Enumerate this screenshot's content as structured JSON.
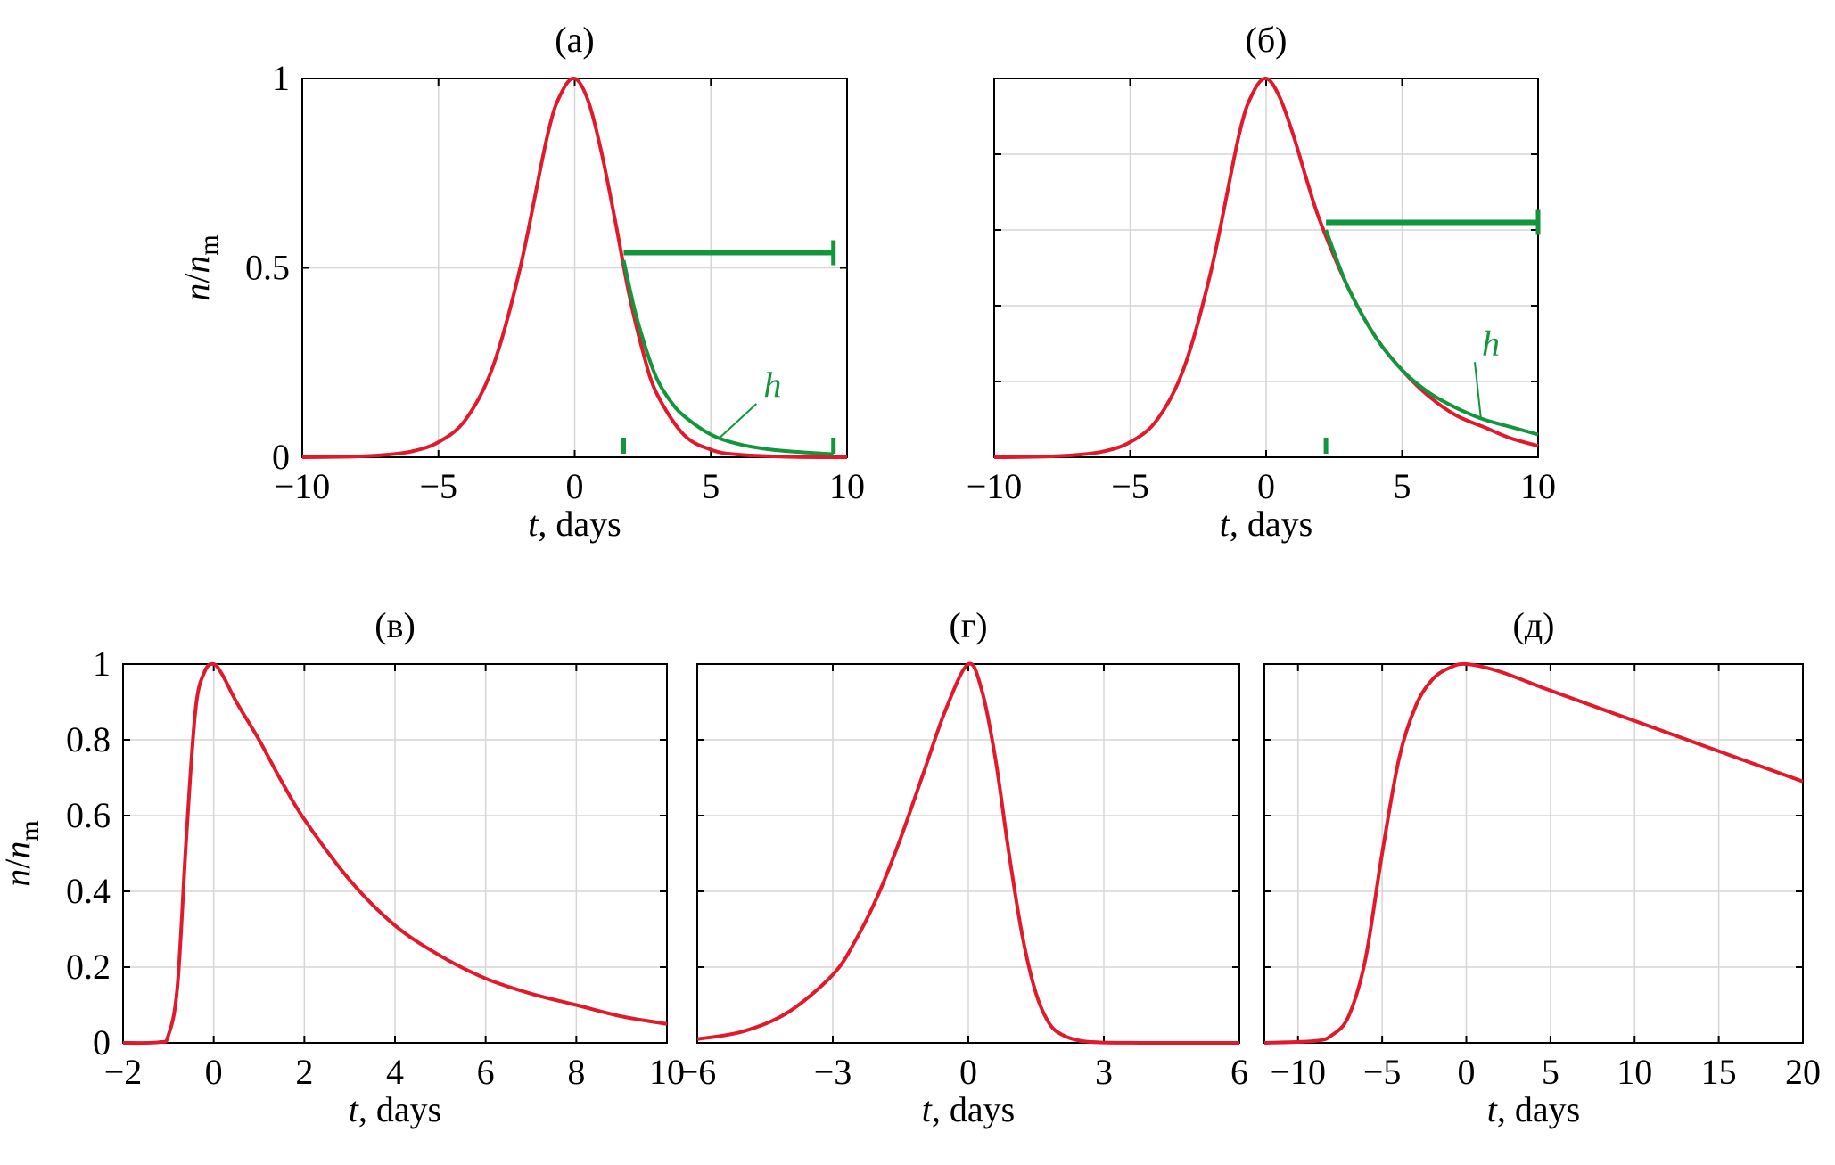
{
  "colors": {
    "main_curve": "#e2192b",
    "fit_curve": "#12963c",
    "grid": "#d6d6d6",
    "axes": "#000000"
  },
  "chart_data": [
    {
      "type": "line",
      "title": "(а)",
      "xlabel": "t, days",
      "ylabel": "n/n_m",
      "xlim": [
        -10,
        10
      ],
      "ylim": [
        0,
        1
      ],
      "grid": true,
      "x_ticks": [
        -10,
        -5,
        0,
        5,
        10
      ],
      "x_tick_labels": [
        "−10",
        "−5",
        "0",
        "5",
        "10"
      ],
      "y_ticks": [
        0,
        0.5,
        1
      ],
      "y_tick_labels": [
        "0",
        "0.5",
        "1"
      ],
      "series": [
        {
          "color": "#e2192b",
          "x": [
            -10,
            -8,
            -7,
            -6,
            -5,
            -4,
            -3,
            -2,
            -1,
            -0.5,
            0,
            0.5,
            1,
            1.5,
            2,
            2.5,
            3,
            4,
            5,
            6,
            8,
            10
          ],
          "y": [
            0.0,
            0.002,
            0.006,
            0.015,
            0.04,
            0.1,
            0.24,
            0.5,
            0.85,
            0.96,
            1.0,
            0.94,
            0.8,
            0.62,
            0.43,
            0.28,
            0.17,
            0.06,
            0.02,
            0.007,
            0.001,
            0.0
          ]
        },
        {
          "color": "#12963c",
          "x": [
            1.8,
            2.2,
            2.6,
            3.0,
            3.5,
            4.0,
            5.0,
            6.0,
            7.0,
            8.0,
            9.5
          ],
          "y": [
            0.52,
            0.39,
            0.29,
            0.21,
            0.15,
            0.11,
            0.06,
            0.035,
            0.022,
            0.015,
            0.008
          ]
        }
      ],
      "annotations": [
        {
          "text": "h",
          "x": 7.0,
          "y": 0.16,
          "target_x": 5.3,
          "target_y": 0.05
        }
      ],
      "interval": {
        "x_start": 1.8,
        "x_end": 9.5,
        "y": 0.54
      }
    },
    {
      "type": "line",
      "title": "(б)",
      "xlabel": "t, days",
      "ylabel": "",
      "xlim": [
        -10,
        10
      ],
      "ylim": [
        0,
        1
      ],
      "grid": true,
      "x_ticks": [
        -10,
        -5,
        0,
        5,
        10
      ],
      "x_tick_labels": [
        "−10",
        "−5",
        "0",
        "5",
        "10"
      ],
      "y_ticks": [
        0,
        0.2,
        0.4,
        0.6,
        0.8,
        1
      ],
      "y_tick_labels": [],
      "series": [
        {
          "color": "#e2192b",
          "x": [
            -10,
            -8,
            -7,
            -6,
            -5,
            -4,
            -3,
            -2,
            -1,
            -0.5,
            0,
            0.5,
            1,
            1.5,
            2,
            3,
            4,
            5,
            6,
            7,
            8,
            9,
            10
          ],
          "y": [
            0.0,
            0.002,
            0.006,
            0.015,
            0.04,
            0.1,
            0.24,
            0.5,
            0.85,
            0.96,
            1.0,
            0.95,
            0.85,
            0.73,
            0.62,
            0.45,
            0.32,
            0.23,
            0.16,
            0.11,
            0.08,
            0.05,
            0.03
          ]
        },
        {
          "color": "#12963c",
          "x": [
            2.2,
            3,
            4,
            5,
            6,
            7,
            8,
            9,
            10
          ],
          "y": [
            0.6,
            0.45,
            0.32,
            0.23,
            0.17,
            0.13,
            0.1,
            0.08,
            0.06
          ]
        }
      ],
      "annotations": [
        {
          "text": "h",
          "x": 8.0,
          "y": 0.27,
          "target_x": 7.9,
          "target_y": 0.1
        }
      ],
      "interval": {
        "x_start": 2.2,
        "x_end": 10.0,
        "y": 0.62
      }
    },
    {
      "type": "line",
      "title": "(в)",
      "xlabel": "t, days",
      "ylabel": "n/n_m",
      "xlim": [
        -2,
        10
      ],
      "ylim": [
        0,
        1
      ],
      "grid": true,
      "x_ticks": [
        -2,
        0,
        2,
        4,
        6,
        8,
        10
      ],
      "x_tick_labels": [
        "−2",
        "0",
        "2",
        "4",
        "6",
        "8",
        "10"
      ],
      "y_ticks": [
        0,
        0.2,
        0.4,
        0.6,
        0.8,
        1
      ],
      "y_tick_labels": [
        "0",
        "0.2",
        "0.4",
        "0.6",
        "0.8",
        "1"
      ],
      "series": [
        {
          "color": "#e2192b",
          "x": [
            -2,
            -1.2,
            -1.0,
            -0.8,
            -0.6,
            -0.4,
            -0.2,
            0,
            0.2,
            0.5,
            1,
            1.5,
            2,
            3,
            4,
            5,
            6,
            7,
            8,
            9,
            10
          ],
          "y": [
            0.0,
            0.002,
            0.02,
            0.15,
            0.55,
            0.88,
            0.98,
            1.0,
            0.97,
            0.9,
            0.8,
            0.69,
            0.59,
            0.43,
            0.31,
            0.23,
            0.17,
            0.13,
            0.1,
            0.07,
            0.05
          ]
        }
      ]
    },
    {
      "type": "line",
      "title": "(г)",
      "xlabel": "t, days",
      "ylabel": "",
      "xlim": [
        -6,
        6
      ],
      "ylim": [
        0,
        1
      ],
      "grid": true,
      "x_ticks": [
        -6,
        -3,
        0,
        3,
        6
      ],
      "x_tick_labels": [
        "−6",
        "−3",
        "0",
        "3",
        "6"
      ],
      "y_ticks": [
        0,
        0.2,
        0.4,
        0.6,
        0.8,
        1
      ],
      "y_tick_labels": [],
      "series": [
        {
          "color": "#e2192b",
          "x": [
            -6,
            -5,
            -4,
            -3,
            -2.5,
            -2,
            -1.5,
            -1,
            -0.5,
            0,
            0.3,
            0.6,
            0.9,
            1.2,
            1.5,
            1.8,
            2.1,
            2.5,
            3,
            4,
            6
          ],
          "y": [
            0.01,
            0.03,
            0.08,
            0.18,
            0.27,
            0.39,
            0.54,
            0.71,
            0.88,
            1.0,
            0.93,
            0.75,
            0.5,
            0.28,
            0.13,
            0.05,
            0.02,
            0.005,
            0.001,
            0.0,
            0.0
          ]
        }
      ]
    },
    {
      "type": "line",
      "title": "(д)",
      "xlabel": "t, days",
      "ylabel": "",
      "xlim": [
        -12,
        20
      ],
      "ylim": [
        0,
        1
      ],
      "grid": true,
      "x_ticks": [
        -10,
        -5,
        0,
        5,
        10,
        15,
        20
      ],
      "x_tick_labels": [
        "−10",
        "−5",
        "0",
        "5",
        "10",
        "15",
        "20"
      ],
      "y_ticks": [
        0,
        0.2,
        0.4,
        0.6,
        0.8,
        1
      ],
      "y_tick_labels": [],
      "series": [
        {
          "color": "#e2192b",
          "x": [
            -12,
            -9,
            -8,
            -7,
            -6,
            -5,
            -4,
            -3,
            -2,
            -1,
            0,
            2,
            5,
            10,
            15,
            20
          ],
          "y": [
            0.0,
            0.005,
            0.02,
            0.07,
            0.22,
            0.5,
            0.75,
            0.89,
            0.96,
            0.99,
            1.0,
            0.98,
            0.93,
            0.85,
            0.77,
            0.69
          ]
        }
      ]
    }
  ]
}
